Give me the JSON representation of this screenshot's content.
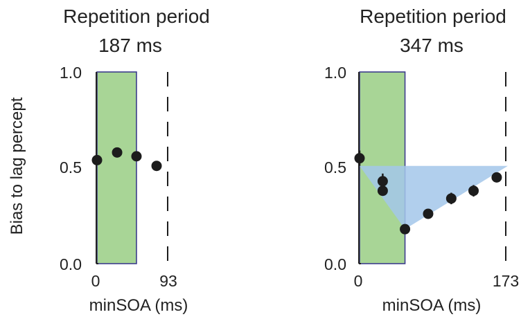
{
  "ylabel": "Bias to lag percept",
  "colors": {
    "shade": "#a8d596",
    "shade_border": "#3c3c8c",
    "triangle": "#a3c7ea",
    "marker": "#1c1c1c",
    "dashed": "#1c1c1c"
  },
  "chart_data": [
    {
      "type": "scatter",
      "title_line1": "Repetition period",
      "title_line2": "187 ms",
      "xlabel": "minSOA (ms)",
      "ylabel": "Bias to lag percept",
      "xlim": [
        0,
        93
      ],
      "ylim": [
        0,
        1
      ],
      "xticks": [
        "0",
        "93"
      ],
      "yticks": [
        "0.0",
        "0.5",
        "1.0"
      ],
      "shaded_region": [
        0,
        53
      ],
      "dashed_line_x": 93,
      "points": [
        {
          "x": 0,
          "y": 0.54
        },
        {
          "x": 27,
          "y": 0.58
        },
        {
          "x": 53,
          "y": 0.56
        },
        {
          "x": 80,
          "y": 0.51
        }
      ],
      "grid": false
    },
    {
      "type": "scatter",
      "title_line1": "Repetition period",
      "title_line2": "347 ms",
      "xlabel": "minSOA (ms)",
      "ylabel": "Bias to lag percept",
      "xlim": [
        0,
        173
      ],
      "ylim": [
        0,
        1
      ],
      "xticks": [
        "0",
        "173"
      ],
      "yticks": [
        "0.0",
        "0.5",
        "1.0"
      ],
      "shaded_region": [
        0,
        53
      ],
      "dashed_line_x": 173,
      "triangle": [
        {
          "x": 0,
          "y": 0.51
        },
        {
          "x": 173,
          "y": 0.51
        },
        {
          "x": 53,
          "y": 0.18
        }
      ],
      "points": [
        {
          "x": 0,
          "y": 0.55,
          "err": 0.04
        },
        {
          "x": 27,
          "y": 0.43,
          "err": 0.04
        },
        {
          "x": 27,
          "y": 0.38,
          "err": 0.02
        },
        {
          "x": 53,
          "y": 0.18,
          "err": 0.02
        },
        {
          "x": 80,
          "y": 0.26,
          "err": 0.02
        },
        {
          "x": 107,
          "y": 0.34,
          "err": 0.03
        },
        {
          "x": 133,
          "y": 0.38,
          "err": 0.03
        },
        {
          "x": 160,
          "y": 0.45,
          "err": 0.02
        }
      ],
      "grid": false
    }
  ]
}
